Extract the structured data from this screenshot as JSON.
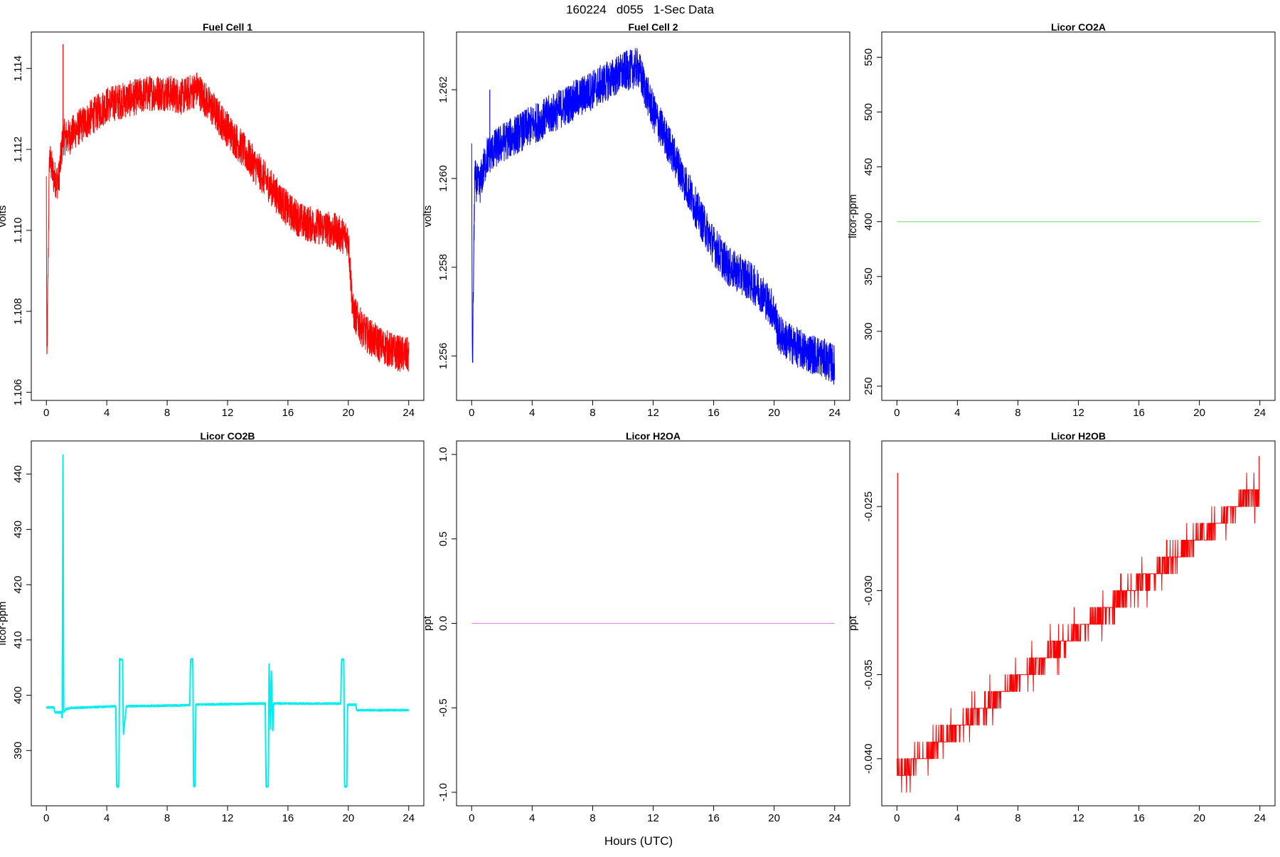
{
  "figure": {
    "suptitle": "160224   d055   1-Sec Data",
    "xlabel": "Hours (UTC)"
  },
  "chart_data": [
    {
      "id": "fc1",
      "type": "line",
      "title": "Fuel Cell 1",
      "xlabel": "",
      "ylabel": "volts",
      "color": "#ff0000",
      "xlim": [
        -1,
        25
      ],
      "ylim": [
        1.1058,
        1.1149
      ],
      "xticks": [
        0,
        4,
        8,
        12,
        16,
        20,
        24
      ],
      "xticklabels": [
        "0",
        "4",
        "8",
        "12",
        "16",
        "20",
        "24"
      ],
      "yticks": [
        1.106,
        1.108,
        1.11,
        1.112,
        1.114
      ],
      "yticklabels": [
        "1.106",
        "1.108",
        "1.110",
        "1.112",
        "1.114"
      ],
      "x": [
        0,
        0.03,
        0.2,
        0.5,
        0.8,
        1.1,
        1.5,
        2,
        3,
        4,
        5,
        6,
        7,
        8,
        9,
        10,
        11,
        12,
        13,
        14,
        15,
        16,
        17,
        18,
        19,
        20,
        20.3,
        21,
        22,
        23,
        24
      ],
      "y": [
        1.1112,
        1.1065,
        1.1118,
        1.1113,
        1.1112,
        1.1123,
        1.1123,
        1.1125,
        1.1128,
        1.1131,
        1.1132,
        1.1133,
        1.1134,
        1.1134,
        1.1133,
        1.1135,
        1.113,
        1.1125,
        1.112,
        1.1115,
        1.111,
        1.1105,
        1.1102,
        1.1101,
        1.11,
        1.1098,
        1.108,
        1.1075,
        1.1072,
        1.107,
        1.1069
      ],
      "noise": 0.00045,
      "spikes": [
        {
          "x": 1.1,
          "y": 1.1146
        },
        {
          "x": 0.03,
          "y": 1.1065
        }
      ]
    },
    {
      "id": "fc2",
      "type": "line",
      "title": "Fuel Cell 2",
      "xlabel": "",
      "ylabel": "volts",
      "color": "#0000ff",
      "xlim": [
        -1,
        25
      ],
      "ylim": [
        1.255,
        1.2633
      ],
      "xticks": [
        0,
        4,
        8,
        12,
        16,
        20,
        24
      ],
      "xticklabels": [
        "0",
        "4",
        "8",
        "12",
        "16",
        "20",
        "24"
      ],
      "yticks": [
        1.256,
        1.258,
        1.26,
        1.262
      ],
      "yticklabels": [
        "1.256",
        "1.258",
        "1.260",
        "1.262"
      ],
      "x": [
        0,
        0.05,
        0.2,
        0.5,
        1,
        2,
        3,
        4,
        5,
        6,
        7,
        8,
        9,
        10,
        11,
        12,
        13,
        14,
        15,
        16,
        17,
        18,
        19,
        20,
        20.3,
        21,
        22,
        23,
        24
      ],
      "y": [
        1.2605,
        1.2556,
        1.26,
        1.2598,
        1.2605,
        1.2608,
        1.261,
        1.2612,
        1.2614,
        1.2616,
        1.2618,
        1.262,
        1.2622,
        1.2624,
        1.2625,
        1.2615,
        1.2608,
        1.26,
        1.2592,
        1.2585,
        1.258,
        1.2578,
        1.2575,
        1.257,
        1.2565,
        1.2563,
        1.2561,
        1.256,
        1.2558
      ],
      "noise": 0.00045,
      "spikes": [
        {
          "x": 0.05,
          "y": 1.2556
        },
        {
          "x": 1.2,
          "y": 1.262
        }
      ]
    },
    {
      "id": "co2a",
      "type": "line",
      "title": "Licor CO2A",
      "xlabel": "",
      "ylabel": "licor-ppm",
      "color": "#66dd66",
      "xlim": [
        -1,
        25
      ],
      "ylim": [
        237,
        573
      ],
      "xticks": [
        0,
        4,
        8,
        12,
        16,
        20,
        24
      ],
      "xticklabels": [
        "0",
        "4",
        "8",
        "12",
        "16",
        "20",
        "24"
      ],
      "yticks": [
        250,
        300,
        350,
        400,
        450,
        500,
        550
      ],
      "yticklabels": [
        "250",
        "300",
        "350",
        "400",
        "450",
        "500",
        "550"
      ],
      "x": [
        0,
        24
      ],
      "y": [
        400,
        400
      ],
      "noise": 0
    },
    {
      "id": "co2b",
      "type": "line",
      "title": "Licor CO2B",
      "xlabel": "",
      "ylabel": "licor-ppm",
      "color": "#00eeee",
      "xlim": [
        -1,
        25
      ],
      "ylim": [
        380,
        446
      ],
      "xticks": [
        0,
        4,
        8,
        12,
        16,
        20,
        24
      ],
      "xticklabels": [
        "0",
        "4",
        "8",
        "12",
        "16",
        "20",
        "24"
      ],
      "yticks": [
        390,
        400,
        410,
        420,
        430,
        440
      ],
      "yticklabels": [
        "390",
        "400",
        "410",
        "420",
        "430",
        "440"
      ],
      "x": [
        0,
        0.5,
        0.55,
        1.0,
        1.05,
        1.1,
        1.15,
        1.3,
        1.6,
        4.6,
        4.65,
        4.8,
        4.85,
        5.05,
        5.1,
        5.3,
        9.5,
        9.55,
        9.7,
        9.75,
        9.85,
        9.9,
        14.5,
        14.55,
        14.7,
        14.75,
        14.85,
        14.9,
        15.0,
        15.05,
        15.15,
        19.5,
        19.55,
        19.7,
        19.75,
        19.9,
        19.95,
        20.5,
        20.55,
        24
      ],
      "y": [
        397.8,
        397.8,
        396.9,
        396.9,
        395.5,
        444,
        397,
        397.5,
        397.7,
        398,
        383.5,
        383.5,
        406.5,
        406.5,
        393,
        398,
        398.2,
        406.5,
        406.5,
        383.5,
        383.5,
        398.3,
        398.5,
        383.5,
        383.5,
        406.5,
        393.5,
        405,
        393,
        398.5,
        398.5,
        398.5,
        406.5,
        406.5,
        383.5,
        383.5,
        398.3,
        398.3,
        397.3,
        397.3
      ],
      "noise": 0.15
    },
    {
      "id": "h2oa",
      "type": "line",
      "title": "Licor H2OA",
      "xlabel": "",
      "ylabel": "ppt",
      "color": "#dd88dd",
      "xlim": [
        -1,
        25
      ],
      "ylim": [
        -1.08,
        1.08
      ],
      "xticks": [
        0,
        4,
        8,
        12,
        16,
        20,
        24
      ],
      "xticklabels": [
        "0",
        "4",
        "8",
        "12",
        "16",
        "20",
        "24"
      ],
      "yticks": [
        -1.0,
        -0.5,
        0.0,
        0.5,
        1.0
      ],
      "yticklabels": [
        "-1.0",
        "-0.5",
        "0.0",
        "0.5",
        "1.0"
      ],
      "x": [
        0,
        24
      ],
      "y": [
        0,
        0
      ],
      "noise": 0
    },
    {
      "id": "h2ob",
      "type": "line",
      "title": "Licor H2OB",
      "xlabel": "",
      "ylabel": "ppt",
      "color": "#ff0000",
      "xlim": [
        -1,
        25
      ],
      "ylim": [
        -0.0428,
        -0.0211
      ],
      "xticks": [
        0,
        4,
        8,
        12,
        16,
        20,
        24
      ],
      "xticklabels": [
        "0",
        "4",
        "8",
        "12",
        "16",
        "20",
        "24"
      ],
      "yticks": [
        -0.04,
        -0.035,
        -0.03,
        -0.025
      ],
      "yticklabels": [
        "-0.040",
        "-0.035",
        "-0.030",
        "-0.025"
      ],
      "x": [
        0,
        24
      ],
      "y": [
        -0.041,
        -0.024
      ],
      "noise": 0,
      "quantized": true,
      "quantum": 0.001,
      "spikes": [
        {
          "x": 0.05,
          "y": -0.023
        },
        {
          "x": 23.95,
          "y": -0.022
        }
      ]
    }
  ]
}
